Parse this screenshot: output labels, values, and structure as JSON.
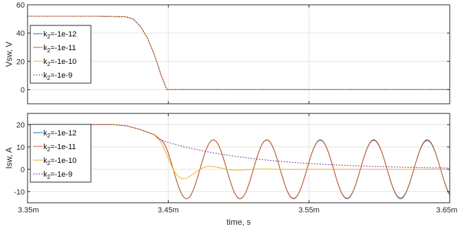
{
  "chart_data": [
    {
      "type": "line",
      "ylabel": "Vsw, V",
      "xlabel": "",
      "xlim": [
        3.35,
        3.65
      ],
      "ylim": [
        -10,
        60
      ],
      "yticks": [
        0,
        20,
        40,
        60
      ],
      "xticks": [
        3.35,
        3.45,
        3.55,
        3.65
      ],
      "grid": true,
      "legend_position": "left-middle",
      "series": [
        {
          "name": "k2=-1e-12",
          "label_base": "k",
          "label_sub": "2",
          "label_rest": "=-1e-12",
          "color": "#0072BD",
          "dash": "solid",
          "x": [
            3.35,
            3.4,
            3.42,
            3.425,
            3.43,
            3.435,
            3.44,
            3.445,
            3.449,
            3.65
          ],
          "y": [
            52,
            52,
            51.5,
            50,
            45,
            37,
            25,
            10,
            0,
            0
          ]
        },
        {
          "name": "k2=-1e-11",
          "label_base": "k",
          "label_sub": "2",
          "label_rest": "=-1e-11",
          "color": "#D95319",
          "dash": "solid",
          "x": [
            3.35,
            3.4,
            3.42,
            3.425,
            3.43,
            3.435,
            3.44,
            3.445,
            3.449,
            3.65
          ],
          "y": [
            52,
            52,
            51.5,
            50,
            45,
            37,
            25,
            10,
            0,
            0
          ]
        },
        {
          "name": "k2=-1e-10",
          "label_base": "k",
          "label_sub": "2",
          "label_rest": "=-1e-10",
          "color": "#EDB120",
          "dash": "solid",
          "x": [
            3.35,
            3.4,
            3.42,
            3.425,
            3.43,
            3.435,
            3.44,
            3.445,
            3.449,
            3.65
          ],
          "y": [
            52,
            52,
            51.5,
            50,
            45,
            37,
            25,
            10,
            0,
            0
          ]
        },
        {
          "name": "k2=-1e-9",
          "label_base": "k",
          "label_sub": "2",
          "label_rest": "=-1e-9",
          "color": "#7E2F8E",
          "dash": "dotted",
          "x": [
            3.35,
            3.4,
            3.42,
            3.425,
            3.43,
            3.435,
            3.44,
            3.445,
            3.449,
            3.65
          ],
          "y": [
            52,
            52,
            51.5,
            50,
            45,
            37,
            25,
            10,
            0,
            0
          ]
        }
      ]
    },
    {
      "type": "line",
      "ylabel": "Isw, A",
      "xlabel": "time, s",
      "xlim": [
        3.35,
        3.65
      ],
      "ylim": [
        -15,
        25
      ],
      "yticks": [
        -10,
        0,
        10,
        20
      ],
      "xticks": [
        3.35,
        3.45,
        3.55,
        3.65
      ],
      "xtick_labels": [
        "3.35m",
        "3.45m",
        "3.55m",
        "3.65m"
      ],
      "grid": true,
      "legend_position": "left-middle",
      "series": [
        {
          "name": "k2=-1e-12",
          "label_base": "k",
          "label_sub": "2",
          "label_rest": "=-1e-12",
          "color": "#0072BD",
          "dash": "solid",
          "model": {
            "pre": [
              [
                3.35,
                20
              ],
              [
                3.41,
                20
              ],
              [
                3.42,
                19.5
              ],
              [
                3.43,
                17.8
              ],
              [
                3.44,
                15.5
              ],
              [
                3.445,
                13
              ]
            ],
            "t0": 3.445,
            "y0": 13,
            "period": 0.038,
            "decay": 100,
            "first_min": 3.463
          }
        },
        {
          "name": "k2=-1e-11",
          "label_base": "k",
          "label_sub": "2",
          "label_rest": "=-1e-11",
          "color": "#D95319",
          "dash": "solid",
          "model": {
            "pre": [
              [
                3.35,
                20
              ],
              [
                3.41,
                20
              ],
              [
                3.42,
                19.5
              ],
              [
                3.43,
                17.8
              ],
              [
                3.44,
                15.5
              ],
              [
                3.445,
                13
              ]
            ],
            "t0": 3.445,
            "y0": 13,
            "period": 0.038,
            "decay": 7.1,
            "first_min": 3.463
          }
        },
        {
          "name": "k2=-1e-10",
          "label_base": "k",
          "label_sub": "2",
          "label_rest": "=-1e-10",
          "color": "#EDB120",
          "dash": "solid",
          "model": {
            "pre": [
              [
                3.35,
                20
              ],
              [
                3.41,
                20
              ],
              [
                3.42,
                19.5
              ],
              [
                3.43,
                17.8
              ],
              [
                3.44,
                15.5
              ],
              [
                3.445,
                12
              ]
            ],
            "t0": 3.445,
            "y0": 12,
            "period": 0.038,
            "decay": 0.016,
            "first_min": 3.463
          }
        },
        {
          "name": "k2=-1e-9",
          "label_base": "k",
          "label_sub": "2",
          "label_rest": "=-1e-9",
          "color": "#7E2F8E",
          "dash": "dotted",
          "model": {
            "pre": [
              [
                3.35,
                20
              ],
              [
                3.41,
                20
              ],
              [
                3.42,
                19.5
              ],
              [
                3.43,
                17.8
              ],
              [
                3.44,
                15.5
              ],
              [
                3.445,
                13
              ]
            ],
            "t0": 3.445,
            "y0": 13,
            "tau": 0.065,
            "type": "exp"
          }
        }
      ]
    }
  ]
}
